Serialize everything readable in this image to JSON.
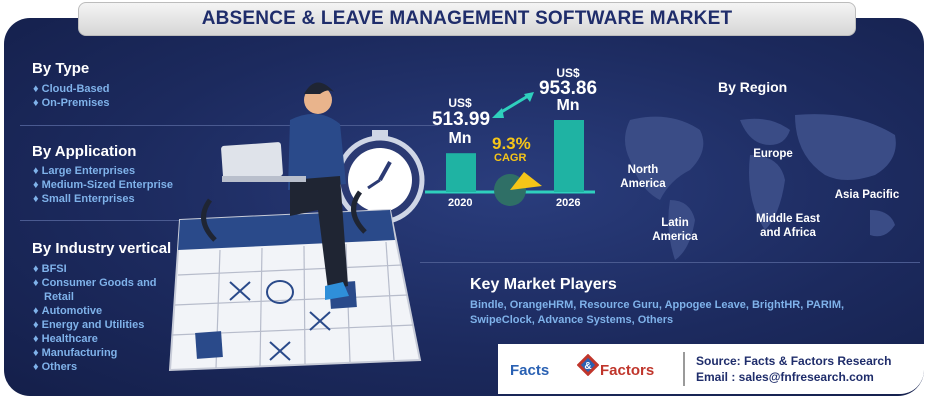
{
  "title": "ABSENCE & LEAVE MANAGEMENT SOFTWARE MARKET",
  "by_type": {
    "heading": "By Type",
    "items": [
      "Cloud-Based",
      "On-Premises"
    ]
  },
  "by_application": {
    "heading": "By Application",
    "items": [
      "Large Enterprises",
      "Medium-Sized Enterprise",
      "Small Enterprises"
    ]
  },
  "by_industry": {
    "heading": "By Industry vertical",
    "items": [
      "BFSI",
      "Consumer Goods and",
      "Retail",
      "Automotive",
      "Energy and Utilities",
      "Healthcare",
      "Manufacturing",
      "Others"
    ]
  },
  "chart_data": {
    "type": "bar",
    "categories": [
      "2020",
      "2026"
    ],
    "values": [
      513.99,
      953.86
    ],
    "value_labels": [
      {
        "prefix": "US$",
        "value": "513.99",
        "unit": "Mn"
      },
      {
        "prefix": "US$",
        "value": "953.86",
        "unit": "Mn"
      }
    ],
    "cagr": {
      "value": "9.3%",
      "label": "CAGR"
    },
    "colors": {
      "bar": "#1fb3a3",
      "gauge": "#f5c518",
      "gauge_base": "#2f6f66"
    }
  },
  "by_region": {
    "heading": "By Region",
    "regions": {
      "north_america": [
        "North",
        "America"
      ],
      "europe": [
        "Europe"
      ],
      "asia_pacific": [
        "Asia Pacific"
      ],
      "latin_america": [
        "Latin",
        "America"
      ],
      "middle_east_africa": [
        "Middle East",
        "and Africa"
      ]
    }
  },
  "key_players": {
    "heading": "Key Market Players",
    "line1": "Bindle, OrangeHRM, Resource Guru, Appogee Leave, BrightHR, PARIM,",
    "line2": "SwipeClock, Advance Systems, Others"
  },
  "footer": {
    "logo_left": "Facts",
    "logo_amp": "&",
    "logo_right": "Factors",
    "source": "Source: Facts & Factors Research",
    "email": "Email :  sales@fnfresearch.com"
  },
  "icons": [
    "laptop-icon",
    "clock-icon",
    "calendar-icon",
    "world-map-icon",
    "arrow-icon"
  ]
}
